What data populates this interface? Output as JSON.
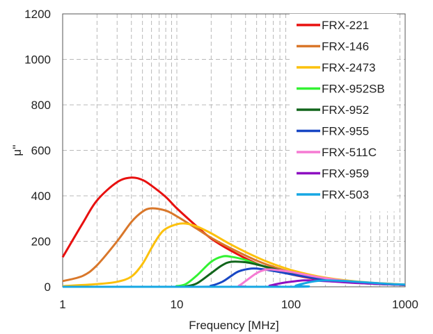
{
  "chart_data": {
    "type": "line",
    "title": "",
    "xlabel": "Frequency [MHz]",
    "ylabel": "μ''",
    "x_scale": "log",
    "xlim": [
      1,
      1000
    ],
    "ylim": [
      0,
      1200
    ],
    "x_ticks": [
      1,
      10,
      100,
      1000
    ],
    "x_tick_labels": [
      "1",
      "10",
      "100",
      "1000"
    ],
    "y_ticks": [
      0,
      200,
      400,
      600,
      800,
      1000,
      1200
    ],
    "y_tick_labels": [
      "0",
      "200",
      "400",
      "600",
      "800",
      "1000",
      "1200"
    ],
    "grid": true,
    "legend_position": "top-right",
    "series": [
      {
        "name": "FRX-221",
        "color": "#e8100f",
        "points": [
          [
            1,
            130
          ],
          [
            1.5,
            280
          ],
          [
            2,
            380
          ],
          [
            3,
            460
          ],
          [
            4,
            480
          ],
          [
            5,
            470
          ],
          [
            6,
            445
          ],
          [
            8,
            395
          ],
          [
            10,
            345
          ],
          [
            15,
            265
          ],
          [
            20,
            212
          ],
          [
            30,
            158
          ],
          [
            50,
            102
          ],
          [
            70,
            76
          ],
          [
            100,
            55
          ],
          [
            150,
            38
          ],
          [
            200,
            30
          ],
          [
            300,
            21
          ],
          [
            500,
            14
          ],
          [
            700,
            11
          ],
          [
            1000,
            8
          ]
        ]
      },
      {
        "name": "FRX-146",
        "color": "#d9772a",
        "points": [
          [
            1,
            25
          ],
          [
            1.5,
            48
          ],
          [
            2,
            95
          ],
          [
            3,
            200
          ],
          [
            4,
            285
          ],
          [
            5,
            330
          ],
          [
            6,
            345
          ],
          [
            8,
            335
          ],
          [
            10,
            310
          ],
          [
            15,
            255
          ],
          [
            20,
            215
          ],
          [
            30,
            168
          ],
          [
            50,
            115
          ],
          [
            70,
            88
          ],
          [
            100,
            64
          ],
          [
            150,
            45
          ],
          [
            200,
            35
          ],
          [
            300,
            25
          ],
          [
            500,
            16
          ],
          [
            700,
            12
          ],
          [
            1000,
            9
          ]
        ]
      },
      {
        "name": "FRX-2473",
        "color": "#fcc10c",
        "points": [
          [
            1,
            3
          ],
          [
            2,
            12
          ],
          [
            3,
            22
          ],
          [
            4,
            45
          ],
          [
            5,
            100
          ],
          [
            6,
            170
          ],
          [
            7,
            225
          ],
          [
            8,
            255
          ],
          [
            10,
            275
          ],
          [
            12,
            278
          ],
          [
            15,
            265
          ],
          [
            20,
            235
          ],
          [
            30,
            185
          ],
          [
            50,
            130
          ],
          [
            70,
            100
          ],
          [
            100,
            74
          ],
          [
            150,
            52
          ],
          [
            200,
            40
          ],
          [
            300,
            28
          ],
          [
            500,
            18
          ],
          [
            700,
            14
          ],
          [
            1000,
            10
          ]
        ]
      },
      {
        "name": "FRX-952SB",
        "color": "#33f233",
        "points": [
          [
            1,
            0
          ],
          [
            8,
            0
          ],
          [
            10,
            3
          ],
          [
            12,
            12
          ],
          [
            15,
            50
          ],
          [
            20,
            110
          ],
          [
            25,
            133
          ],
          [
            30,
            132
          ],
          [
            40,
            118
          ],
          [
            50,
            100
          ],
          [
            70,
            78
          ],
          [
            100,
            58
          ],
          [
            150,
            40
          ],
          [
            200,
            31
          ],
          [
            300,
            22
          ],
          [
            500,
            14
          ],
          [
            700,
            11
          ],
          [
            1000,
            8
          ]
        ]
      },
      {
        "name": "FRX-952",
        "color": "#11651b",
        "points": [
          [
            1,
            0
          ],
          [
            10,
            0
          ],
          [
            12,
            2
          ],
          [
            15,
            15
          ],
          [
            20,
            60
          ],
          [
            25,
            95
          ],
          [
            30,
            110
          ],
          [
            40,
            108
          ],
          [
            50,
            98
          ],
          [
            70,
            80
          ],
          [
            100,
            60
          ],
          [
            150,
            42
          ],
          [
            200,
            33
          ],
          [
            300,
            23
          ],
          [
            500,
            15
          ],
          [
            700,
            12
          ],
          [
            1000,
            9
          ]
        ]
      },
      {
        "name": "FRX-955",
        "color": "#1847c4",
        "points": [
          [
            1,
            0
          ],
          [
            15,
            0
          ],
          [
            20,
            5
          ],
          [
            25,
            22
          ],
          [
            30,
            48
          ],
          [
            35,
            68
          ],
          [
            45,
            80
          ],
          [
            55,
            78
          ],
          [
            70,
            70
          ],
          [
            100,
            55
          ],
          [
            150,
            40
          ],
          [
            200,
            31
          ],
          [
            300,
            22
          ],
          [
            500,
            14
          ],
          [
            700,
            11
          ],
          [
            1000,
            8
          ]
        ]
      },
      {
        "name": "FRX-511C",
        "color": "#f57ad3",
        "points": [
          [
            1,
            0
          ],
          [
            30,
            0
          ],
          [
            35,
            5
          ],
          [
            40,
            25
          ],
          [
            50,
            60
          ],
          [
            60,
            75
          ],
          [
            70,
            75
          ],
          [
            100,
            65
          ],
          [
            150,
            48
          ],
          [
            200,
            38
          ],
          [
            300,
            26
          ],
          [
            500,
            16
          ],
          [
            700,
            12
          ],
          [
            1000,
            9
          ]
        ]
      },
      {
        "name": "FRX-959",
        "color": "#8d0fc1",
        "points": [
          [
            1,
            0
          ],
          [
            55,
            0
          ],
          [
            65,
            5
          ],
          [
            80,
            15
          ],
          [
            100,
            22
          ],
          [
            130,
            28
          ],
          [
            170,
            27
          ],
          [
            250,
            22
          ],
          [
            400,
            16
          ],
          [
            700,
            11
          ],
          [
            1000,
            9
          ]
        ]
      },
      {
        "name": "FRX-503",
        "color": "#16a7e3",
        "points": [
          [
            1,
            0
          ],
          [
            100,
            0
          ],
          [
            110,
            5
          ],
          [
            130,
            15
          ],
          [
            160,
            24
          ],
          [
            200,
            28
          ],
          [
            300,
            25
          ],
          [
            500,
            18
          ],
          [
            700,
            13
          ],
          [
            1000,
            10
          ]
        ]
      }
    ]
  }
}
